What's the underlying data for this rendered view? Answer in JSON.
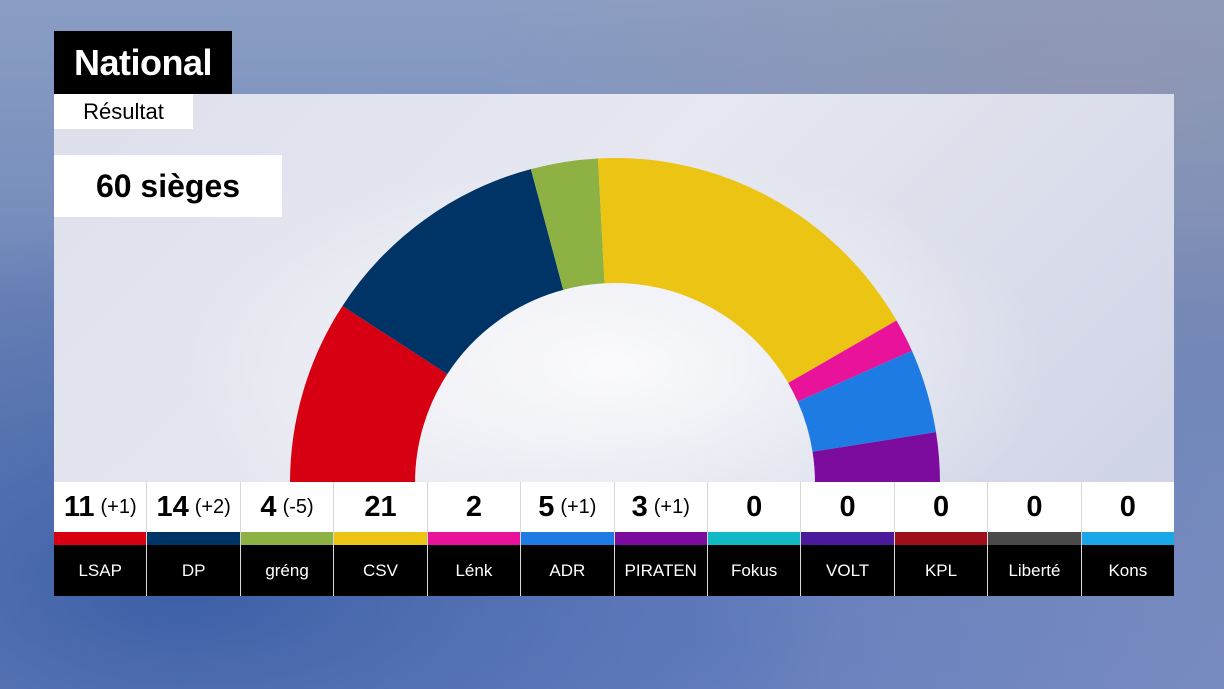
{
  "header": {
    "title": "National",
    "subtitle": "Résultat"
  },
  "total": {
    "label": "60 sièges"
  },
  "chart_data": {
    "type": "hemicycle",
    "total_seats": 60,
    "parties": [
      {
        "name": "LSAP",
        "seats": 11,
        "change": "(+1)",
        "color": "#d70012"
      },
      {
        "name": "DP",
        "seats": 14,
        "change": "(+2)",
        "color": "#003366"
      },
      {
        "name": "gréng",
        "seats": 4,
        "change": "(-5)",
        "color": "#8db143"
      },
      {
        "name": "CSV",
        "seats": 21,
        "change": "",
        "color": "#ecc413"
      },
      {
        "name": "Lénk",
        "seats": 2,
        "change": "",
        "color": "#e8139a"
      },
      {
        "name": "ADR",
        "seats": 5,
        "change": "(+1)",
        "color": "#1d7be3"
      },
      {
        "name": "PIRATEN",
        "seats": 3,
        "change": "(+1)",
        "color": "#7b0c9e"
      },
      {
        "name": "Fokus",
        "seats": 0,
        "change": "",
        "color": "#10b9c4"
      },
      {
        "name": "VOLT",
        "seats": 0,
        "change": "",
        "color": "#4a1a9a"
      },
      {
        "name": "KPL",
        "seats": 0,
        "change": "",
        "color": "#9e0f19"
      },
      {
        "name": "Liberté",
        "seats": 0,
        "change": "",
        "color": "#4a4a4a"
      },
      {
        "name": "Kons",
        "seats": 0,
        "change": "",
        "color": "#1aa7e8"
      }
    ]
  }
}
